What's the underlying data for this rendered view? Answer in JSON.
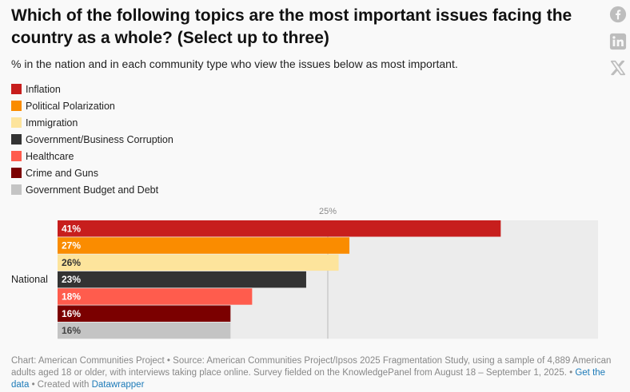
{
  "header": {
    "title": "Which of the following topics are the most important issues facing the country as a whole? (Select up to three)",
    "subtitle": "% in the nation and in each community type who view the issues below as most important."
  },
  "social": {
    "icons": [
      "facebook-icon",
      "linkedin-icon",
      "x-icon"
    ],
    "color": "#bdbdbd"
  },
  "chart_data": {
    "type": "bar",
    "orientation": "horizontal",
    "group": "National",
    "xlim": [
      0,
      50
    ],
    "reference_line": {
      "value": 25,
      "label": "25%"
    },
    "series": [
      {
        "name": "Inflation",
        "value": 41,
        "label": "41%",
        "color": "#c71e1d",
        "label_color": "#ffffff"
      },
      {
        "name": "Political Polarization",
        "value": 27,
        "label": "27%",
        "color": "#fa8c00",
        "label_color": "#ffffff"
      },
      {
        "name": "Immigration",
        "value": 26,
        "label": "26%",
        "color": "#fde49c",
        "label_color": "#333333"
      },
      {
        "name": "Government/Business Corruption",
        "value": 23,
        "label": "23%",
        "color": "#333333",
        "label_color": "#ffffff"
      },
      {
        "name": "Healthcare",
        "value": 18,
        "label": "18%",
        "color": "#ff5c4d",
        "label_color": "#ffffff"
      },
      {
        "name": "Crime and Guns",
        "value": 16,
        "label": "16%",
        "color": "#7b0000",
        "label_color": "#ffffff"
      },
      {
        "name": "Government Budget and Debt",
        "value": 16,
        "label": "16%",
        "color": "#c4c4c4",
        "label_color": "#444444"
      }
    ],
    "track_color": "#ececec"
  },
  "footer": {
    "text": "Chart: American Communities Project • Source: American Communities Project/Ipsos 2025 Fragmentation Study, using a sample of 4,889 American adults aged 18 or older, with interviews taking place online. Survey fielded on the KnowledgePanel from August 18 – September 1, 2025. • ",
    "get_data": "Get the data",
    "created_with": " • Created with ",
    "datawrapper": "Datawrapper"
  }
}
